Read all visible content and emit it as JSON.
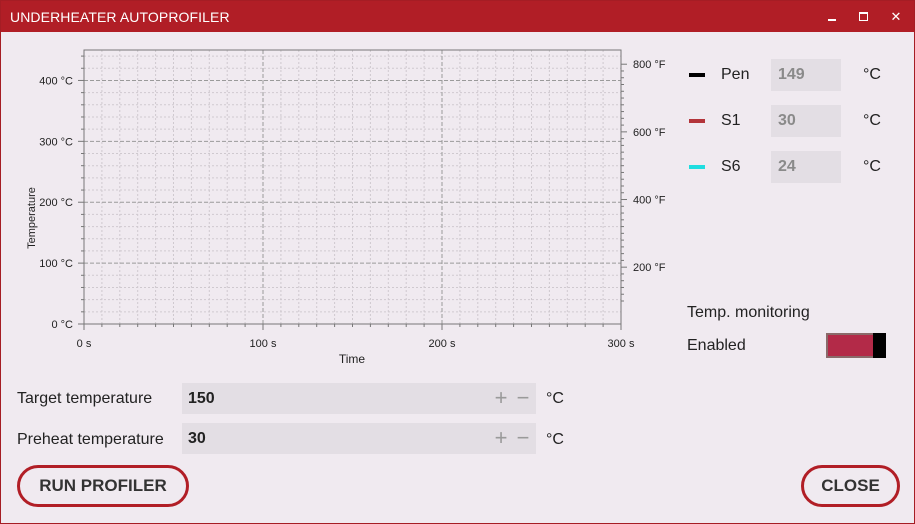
{
  "window": {
    "title": "UNDERHEATER AUTOPROFILER",
    "controls": {
      "minimize_icon": "minimize-icon",
      "maximize_icon": "maximize-icon",
      "close_glyph": "✕"
    }
  },
  "chart": {
    "ylabel": "Temperature",
    "xlabel": "Time",
    "y_ticks": [
      "0 °C",
      "100 °C",
      "200 °C",
      "300 °C",
      "400 °C"
    ],
    "x_ticks": [
      "0 s",
      "100 s",
      "200 s",
      "300 s"
    ],
    "y2_ticks": [
      "200 °F",
      "400 °F",
      "600 °F",
      "800 °F"
    ]
  },
  "chart_data": {
    "type": "line",
    "title": "",
    "xlabel": "Time",
    "ylabel": "Temperature",
    "x_ticks": [
      "0 s",
      "100 s",
      "200 s",
      "300 s"
    ],
    "y_ticks": [
      "0 °C",
      "100 °C",
      "200 °C",
      "300 °C",
      "400 °C"
    ],
    "y2_ticks": [
      "200 °F",
      "400 °F",
      "600 °F",
      "800 °F"
    ],
    "xlim": [
      0,
      300
    ],
    "ylim": [
      0,
      450
    ],
    "y2_unit": "°F",
    "grid": true,
    "series": []
  },
  "legend": [
    {
      "name": "Pen",
      "value": "149",
      "unit": "°C",
      "color": "#000000"
    },
    {
      "name": "S1",
      "value": "30",
      "unit": "°C",
      "color": "#b3343a"
    },
    {
      "name": "S6",
      "value": "24",
      "unit": "°C",
      "color": "#1fdde0"
    }
  ],
  "monitoring": {
    "label": "Temp. monitoring",
    "state": "Enabled",
    "enabled": true
  },
  "fields": [
    {
      "label": "Target temperature",
      "value": "150",
      "unit": "°C",
      "plus": "+",
      "minus": "−"
    },
    {
      "label": "Preheat temperature",
      "value": "30",
      "unit": "°C",
      "plus": "+",
      "minus": "−"
    }
  ],
  "buttons": {
    "run": "RUN PROFILER",
    "close": "CLOSE"
  },
  "colors": {
    "accent": "#b11e26",
    "background": "#f0eaf0",
    "field_bg": "#e3dee4",
    "toggle_on": "#b32a48"
  }
}
